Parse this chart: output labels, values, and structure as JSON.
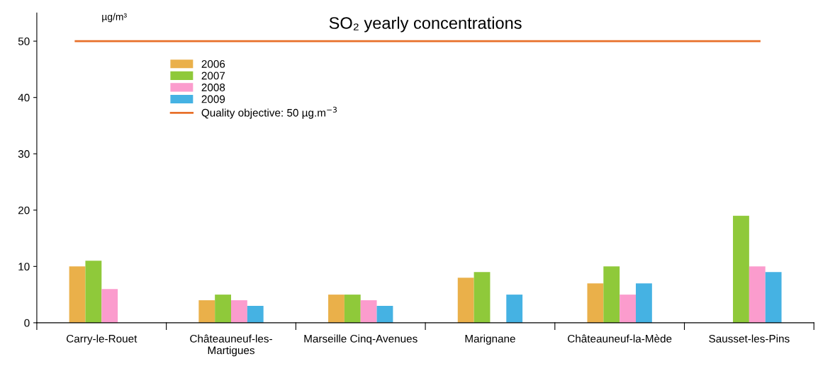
{
  "chart_data": {
    "type": "bar",
    "title": "SO₂ yearly concentrations",
    "ylabel": "µg/m³",
    "categories": [
      "Carry-le-Rouet",
      "Châteauneuf-les-Martigues",
      "Marseille Cinq-Avenues",
      "Marignane",
      "Châteauneuf-la-Mède",
      "Sausset-les-Pins"
    ],
    "series": [
      {
        "name": "2006",
        "color": "#eab04a",
        "values": [
          10,
          4,
          5,
          8,
          7,
          null
        ]
      },
      {
        "name": "2007",
        "color": "#8fc93a",
        "values": [
          11,
          5,
          5,
          9,
          10,
          19
        ]
      },
      {
        "name": "2008",
        "color": "#fb9ccd",
        "values": [
          6,
          4,
          4,
          null,
          5,
          10
        ]
      },
      {
        "name": "2009",
        "color": "#45b2e3",
        "values": [
          null,
          3,
          3,
          5,
          7,
          9
        ]
      }
    ],
    "ylim": [
      0,
      55
    ],
    "yticks": [
      0,
      10,
      20,
      30,
      40,
      50
    ],
    "ref_lines": [
      {
        "axis": "y",
        "value": 50,
        "label": "Quality objective: 50 µg.m$^{−3}$",
        "color": "#e8702a"
      }
    ],
    "grid": false,
    "legend": "top left"
  }
}
